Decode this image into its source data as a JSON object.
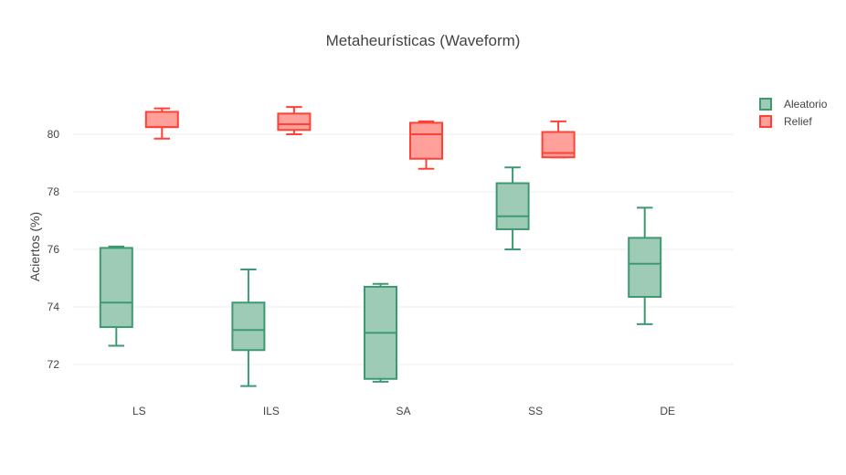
{
  "chart_data": {
    "type": "box",
    "title": "Metaheurísticas (Waveform)",
    "xlabel": "",
    "ylabel": "Aciertos (%)",
    "ylim": [
      71,
      82
    ],
    "yticks": [
      72,
      74,
      76,
      78,
      80
    ],
    "categories": [
      "LS",
      "ILS",
      "SA",
      "SS",
      "DE"
    ],
    "legend_position": "top-right",
    "grid": "horizontal",
    "series": [
      {
        "name": "Aleatorio",
        "color": "#3d9970",
        "fill": "#9ecbb6",
        "boxes": [
          {
            "category": "LS",
            "min": 72.65,
            "q1": 73.3,
            "median": 74.15,
            "q3": 76.05,
            "max": 76.1
          },
          {
            "category": "ILS",
            "min": 71.25,
            "q1": 72.5,
            "median": 73.2,
            "q3": 74.15,
            "max": 75.3
          },
          {
            "category": "SA",
            "min": 71.4,
            "q1": 71.5,
            "median": 73.1,
            "q3": 74.7,
            "max": 74.8
          },
          {
            "category": "SS",
            "min": 76.0,
            "q1": 76.7,
            "median": 77.15,
            "q3": 78.3,
            "max": 78.85
          },
          {
            "category": "DE",
            "min": 73.4,
            "q1": 74.35,
            "median": 75.5,
            "q3": 76.4,
            "max": 77.45
          }
        ]
      },
      {
        "name": "Relief",
        "color": "#ff4136",
        "fill": "#ffa09b",
        "boxes": [
          {
            "category": "LS",
            "min": 79.85,
            "q1": 80.25,
            "median": 80.25,
            "q3": 80.78,
            "max": 80.9
          },
          {
            "category": "ILS",
            "min": 80.0,
            "q1": 80.15,
            "median": 80.35,
            "q3": 80.72,
            "max": 80.95
          },
          {
            "category": "SA",
            "min": 78.8,
            "q1": 79.15,
            "median": 80.0,
            "q3": 80.4,
            "max": 80.45
          },
          {
            "category": "SS",
            "min": 79.2,
            "q1": 79.2,
            "median": 79.35,
            "q3": 80.08,
            "max": 80.45
          }
        ]
      }
    ]
  }
}
